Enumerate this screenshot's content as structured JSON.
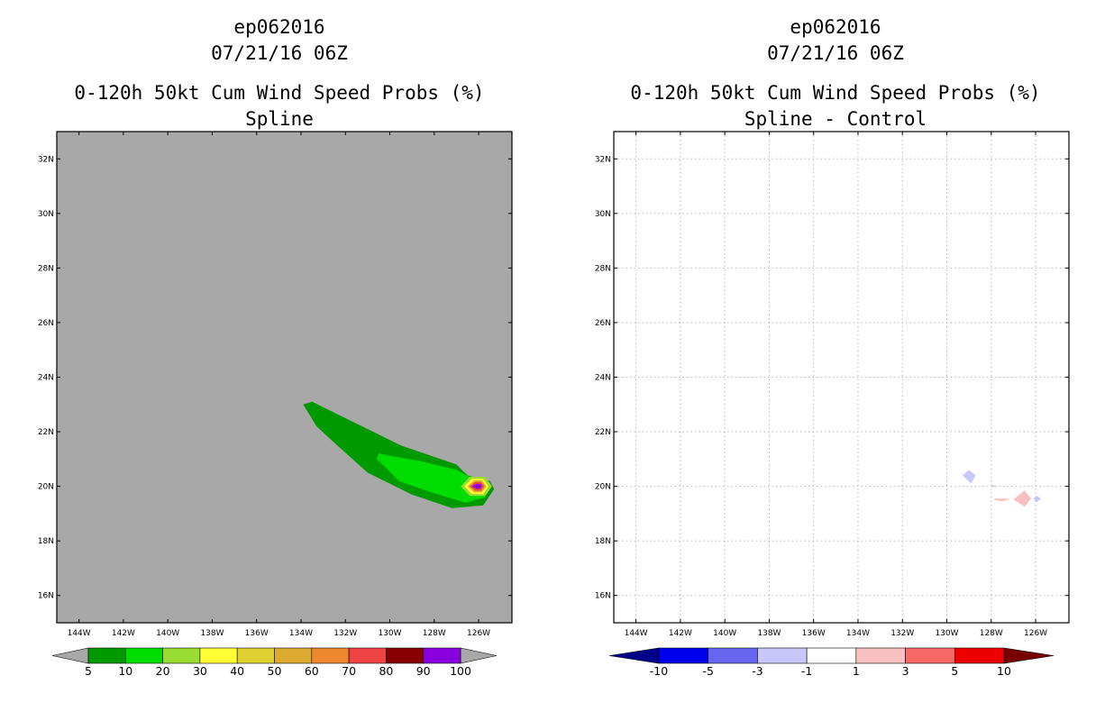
{
  "chart_data": [
    {
      "type": "heatmap",
      "storm_id": "ep062016",
      "datetime": "07/21/16 06Z",
      "title": "0-120h 50kt Cum Wind Speed Probs (%)",
      "subtitle": "Spline",
      "background_color": "#a8a8a8",
      "gridlines": false,
      "xlim": [
        -145,
        -124.5
      ],
      "ylim": [
        15,
        33
      ],
      "x_ticks": [
        -144,
        -142,
        -140,
        -138,
        -136,
        -134,
        -132,
        -130,
        -128,
        -126
      ],
      "x_tick_labels": [
        "144W",
        "142W",
        "140W",
        "138W",
        "136W",
        "134W",
        "132W",
        "130W",
        "128W",
        "126W"
      ],
      "y_ticks": [
        16,
        18,
        20,
        22,
        24,
        26,
        28,
        30,
        32
      ],
      "y_tick_labels": [
        "16N",
        "18N",
        "20N",
        "22N",
        "24N",
        "26N",
        "28N",
        "30N",
        "32N"
      ],
      "colorbar": {
        "labels": [
          "5",
          "10",
          "20",
          "30",
          "40",
          "50",
          "60",
          "70",
          "80",
          "90",
          "100"
        ],
        "colors": [
          "#009900",
          "#00dd00",
          "#99dd33",
          "#ffff33",
          "#ddd030",
          "#ddaa30",
          "#ee8830",
          "#ee4444",
          "#880000",
          "#8800dd"
        ],
        "under_color": "#a8a8a8",
        "over_color": "#a8a8a8"
      },
      "contours": [
        {
          "level": 5,
          "color": "#009900",
          "polygon": [
            [
              -133.9,
              23.0
            ],
            [
              -133.5,
              23.1
            ],
            [
              -131.5,
              22.3
            ],
            [
              -129.5,
              21.5
            ],
            [
              -127.0,
              20.8
            ],
            [
              -126.5,
              20.4
            ],
            [
              -125.5,
              20.2
            ],
            [
              -125.3,
              19.9
            ],
            [
              -125.8,
              19.3
            ],
            [
              -127.2,
              19.2
            ],
            [
              -129.0,
              19.7
            ],
            [
              -131.0,
              20.5
            ],
            [
              -132.5,
              21.6
            ],
            [
              -133.3,
              22.2
            ]
          ]
        },
        {
          "level": 10,
          "color": "#00dd00",
          "polygon": [
            [
              -130.5,
              21.2
            ],
            [
              -128.5,
              20.9
            ],
            [
              -127.0,
              20.6
            ],
            [
              -126.3,
              20.3
            ],
            [
              -125.7,
              20.1
            ],
            [
              -125.7,
              19.6
            ],
            [
              -126.6,
              19.4
            ],
            [
              -128.2,
              19.8
            ],
            [
              -129.6,
              20.2
            ],
            [
              -130.2,
              20.7
            ],
            [
              -130.6,
              21.0
            ]
          ]
        },
        {
          "level": 20,
          "color": "#99dd33",
          "polygon": [
            [
              -126.8,
              20.0
            ],
            [
              -126.4,
              20.35
            ],
            [
              -125.7,
              20.35
            ],
            [
              -125.4,
              20.0
            ],
            [
              -125.7,
              19.65
            ],
            [
              -126.4,
              19.65
            ]
          ]
        },
        {
          "level": 30,
          "color": "#ffff33",
          "polygon": [
            [
              -126.65,
              20.0
            ],
            [
              -126.3,
              20.28
            ],
            [
              -125.8,
              20.28
            ],
            [
              -125.55,
              20.0
            ],
            [
              -125.8,
              19.72
            ],
            [
              -126.3,
              19.72
            ]
          ]
        },
        {
          "level": 50,
          "color": "#ddaa30",
          "polygon": [
            [
              -126.5,
              20.0
            ],
            [
              -126.2,
              20.22
            ],
            [
              -125.85,
              20.22
            ],
            [
              -125.65,
              20.0
            ],
            [
              -125.85,
              19.78
            ],
            [
              -126.2,
              19.78
            ]
          ]
        },
        {
          "level": 70,
          "color": "#ee4444",
          "polygon": [
            [
              -126.4,
              20.0
            ],
            [
              -126.15,
              20.16
            ],
            [
              -125.9,
              20.16
            ],
            [
              -125.75,
              20.0
            ],
            [
              -125.9,
              19.84
            ],
            [
              -126.15,
              19.84
            ]
          ]
        },
        {
          "level": 90,
          "color": "#8800dd",
          "polygon": [
            [
              -126.3,
              20.0
            ],
            [
              -126.1,
              20.09
            ],
            [
              -125.95,
              20.09
            ],
            [
              -125.85,
              20.0
            ],
            [
              -125.95,
              19.91
            ],
            [
              -126.1,
              19.91
            ]
          ]
        }
      ]
    },
    {
      "type": "heatmap",
      "storm_id": "ep062016",
      "datetime": "07/21/16 06Z",
      "title": "0-120h 50kt Cum Wind Speed Probs (%)",
      "subtitle": "Spline - Control",
      "background_color": "#ffffff",
      "gridlines": true,
      "xlim": [
        -145,
        -124.5
      ],
      "ylim": [
        15,
        33
      ],
      "x_ticks": [
        -144,
        -142,
        -140,
        -138,
        -136,
        -134,
        -132,
        -130,
        -128,
        -126
      ],
      "x_tick_labels": [
        "144W",
        "142W",
        "140W",
        "138W",
        "136W",
        "134W",
        "132W",
        "130W",
        "128W",
        "126W"
      ],
      "y_ticks": [
        16,
        18,
        20,
        22,
        24,
        26,
        28,
        30,
        32
      ],
      "y_tick_labels": [
        "16N",
        "18N",
        "20N",
        "22N",
        "24N",
        "26N",
        "28N",
        "30N",
        "32N"
      ],
      "colorbar": {
        "labels": [
          "-10",
          "-5",
          "-3",
          "-1",
          "1",
          "3",
          "5",
          "10"
        ],
        "colors": [
          "#0000ee",
          "#6666ee",
          "#c8c8f8",
          "#ffffff",
          "#f8c0c0",
          "#f86868",
          "#ee0000"
        ],
        "under_color": "#000088",
        "over_color": "#770000"
      },
      "contours": [
        {
          "level": -3,
          "color": "#c8c8f8",
          "polygon": [
            [
              -129.0,
              20.6
            ],
            [
              -128.7,
              20.4
            ],
            [
              -128.9,
              20.1
            ],
            [
              -129.3,
              20.4
            ]
          ]
        },
        {
          "level": -3,
          "color": "#c8c8f8",
          "polygon": [
            [
              -125.95,
              19.65
            ],
            [
              -125.75,
              19.55
            ],
            [
              -125.95,
              19.42
            ],
            [
              -126.1,
              19.55
            ]
          ]
        },
        {
          "level": -3,
          "color": "#c8c8f8",
          "polygon": [
            [
              -127.95,
              20.05
            ],
            [
              -127.75,
              20.0
            ],
            [
              -127.95,
              19.97
            ]
          ]
        },
        {
          "level": 1,
          "color": "#f8c0c0",
          "polygon": [
            [
              -126.5,
              19.85
            ],
            [
              -126.2,
              19.55
            ],
            [
              -126.5,
              19.25
            ],
            [
              -127.0,
              19.52
            ]
          ]
        },
        {
          "level": 1,
          "color": "#f8c0c0",
          "polygon": [
            [
              -127.8,
              19.55
            ],
            [
              -127.1,
              19.55
            ],
            [
              -127.5,
              19.45
            ],
            [
              -127.9,
              19.5
            ]
          ]
        }
      ]
    }
  ]
}
